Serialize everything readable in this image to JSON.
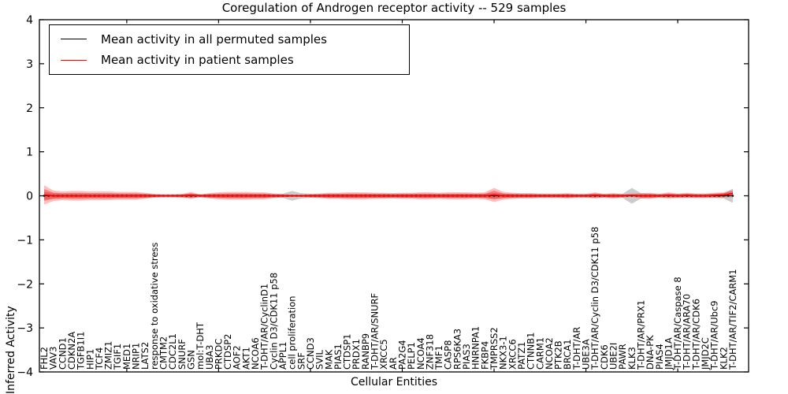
{
  "title": "Coregulation of Androgen receptor activity -- 529 samples",
  "axes": {
    "xlabel": "Cellular Entities",
    "ylabel": "Inferred Activity",
    "ylim": [
      -4,
      4
    ],
    "ytick_labels": [
      "4",
      "3",
      "2",
      "1",
      "0",
      "−1",
      "−2",
      "−3",
      "−4"
    ]
  },
  "legend": {
    "items": [
      {
        "label": "Mean activity in all permuted samples",
        "color": "#000000"
      },
      {
        "label": "Mean activity in patient samples",
        "color": "#ff0000"
      }
    ]
  },
  "chart_data": {
    "type": "line",
    "title": "Coregulation of Androgen receptor activity -- 529 samples",
    "xlabel": "Cellular Entities",
    "ylabel": "Inferred Activity",
    "ylim": [
      -4,
      4
    ],
    "yticks": [
      -4,
      -3,
      -2,
      -1,
      0,
      1,
      2,
      3,
      4
    ],
    "grid": false,
    "legend_position": "upper left",
    "categories": [
      "FHL2",
      "VAV3",
      "CCND1",
      "CDKN2A",
      "TGFB1I1",
      "HIP1",
      "TCF4",
      "ZMIZ1",
      "TGIF1",
      "MED1",
      "NRIP1",
      "LATS2",
      "response to oxidative stress",
      "CMTM2",
      "CDC2L1",
      "SNURF",
      "GSN",
      "mol:T-DHT",
      "UBA3",
      "PRKDC",
      "CTDSP2",
      "AOF2",
      "AKT1",
      "NCOA6",
      "T-DHT/AR/CyclinD1",
      "Cyclin D3/CDK11 p58",
      "APPL1",
      "cell proliferation",
      "SRF",
      "CCND3",
      "SVIL",
      "MAK",
      "PIAS1",
      "CTDSP1",
      "PRDX1",
      "RANBP9",
      "T-DHT/AR/SNURF",
      "XRCC5",
      "AR",
      "PA2G4",
      "PELP1",
      "NCOA4",
      "ZNF318",
      "TMF1",
      "CASP8",
      "RPS6KA3",
      "PIAS3",
      "HNRNPA1",
      "FKBP4",
      "TMPRSS2",
      "NKX3-1",
      "XRCC6",
      "PATZ1",
      "CTNNB1",
      "CARM1",
      "NCOA2",
      "PTK2B",
      "BRCA1",
      "T-DHT/AR",
      "UBE3A",
      "T-DHT/AR/Cyclin D3/CDK11 p58",
      "CDK6",
      "UBE2I",
      "PAWR",
      "KLK3",
      "T-DHT/AR/PRX1",
      "DNA-PK",
      "PIAS4",
      "JMJD1A",
      "T-DHT/AR/Caspase 8",
      "T-DHT/AR/ARA70",
      "T-DHT/AR/CDK6",
      "JMJD2C",
      "T-DHT/AR/Ubc9",
      "KLK2",
      "T-DHT/AR/TIF2/CARM1"
    ],
    "series": [
      {
        "name": "Mean activity in all permuted samples",
        "color": "#000000",
        "band_color": "#bbbbbb",
        "band_opacity": 0.75,
        "values": [
          0,
          0,
          0,
          0,
          0,
          0,
          0,
          0,
          0,
          0,
          0,
          0,
          0,
          0,
          0,
          0,
          0,
          0,
          0,
          0,
          0,
          0,
          0,
          0,
          0,
          0,
          0,
          0,
          0,
          0,
          0,
          0,
          0,
          0,
          0,
          0,
          0,
          0,
          0,
          0,
          0,
          0,
          0,
          0,
          0,
          0,
          0,
          0,
          0,
          0,
          0,
          0,
          0,
          0,
          0,
          0,
          0,
          0,
          0,
          0,
          0,
          0,
          0,
          0,
          0,
          0,
          0,
          0,
          0,
          0,
          0,
          0,
          0,
          0,
          0,
          0
        ],
        "band_halfwidth": [
          0.09,
          0.06,
          0.05,
          0.05,
          0.05,
          0.05,
          0.05,
          0.05,
          0.05,
          0.05,
          0.05,
          0.05,
          0.04,
          0.04,
          0.04,
          0.04,
          0.05,
          0.04,
          0.05,
          0.05,
          0.05,
          0.05,
          0.05,
          0.05,
          0.05,
          0.05,
          0.05,
          0.11,
          0.06,
          0.05,
          0.05,
          0.05,
          0.05,
          0.05,
          0.05,
          0.05,
          0.05,
          0.05,
          0.05,
          0.05,
          0.05,
          0.05,
          0.05,
          0.05,
          0.05,
          0.05,
          0.05,
          0.05,
          0.05,
          0.07,
          0.05,
          0.05,
          0.05,
          0.05,
          0.05,
          0.05,
          0.05,
          0.05,
          0.05,
          0.05,
          0.05,
          0.05,
          0.05,
          0.05,
          0.18,
          0.06,
          0.05,
          0.05,
          0.05,
          0.05,
          0.05,
          0.05,
          0.05,
          0.05,
          0.06,
          0.16
        ]
      },
      {
        "name": "Mean activity in patient samples",
        "color": "#ff0000",
        "band_color": "#ff0000",
        "band_opacity": 0.25,
        "band_inner_ratio": 0.6,
        "values": [
          0.02,
          0,
          0,
          0,
          0,
          0,
          0,
          0,
          0,
          0,
          0,
          0,
          0,
          0,
          0,
          0,
          0.01,
          0,
          0,
          0,
          0,
          0,
          0,
          0,
          0,
          0,
          0,
          0,
          0,
          0,
          0,
          0,
          0,
          0,
          0,
          0,
          0,
          0,
          0,
          0,
          0,
          0,
          0,
          0,
          0,
          0,
          0,
          0,
          0,
          0.02,
          0,
          0,
          0,
          0,
          0,
          0,
          0,
          0,
          0,
          0,
          0.01,
          0,
          0,
          0,
          0.01,
          0,
          0,
          0,
          0.01,
          0,
          0.01,
          0,
          0,
          0.01,
          0.02,
          0.05
        ],
        "band_halfwidth": [
          0.22,
          0.12,
          0.1,
          0.11,
          0.11,
          0.1,
          0.1,
          0.1,
          0.09,
          0.09,
          0.09,
          0.07,
          0.04,
          0.03,
          0.03,
          0.04,
          0.08,
          0.03,
          0.06,
          0.08,
          0.09,
          0.09,
          0.09,
          0.08,
          0.08,
          0.05,
          0.04,
          0.03,
          0.03,
          0.04,
          0.05,
          0.07,
          0.07,
          0.08,
          0.08,
          0.08,
          0.07,
          0.07,
          0.06,
          0.07,
          0.07,
          0.08,
          0.08,
          0.07,
          0.08,
          0.08,
          0.08,
          0.07,
          0.08,
          0.16,
          0.09,
          0.07,
          0.06,
          0.06,
          0.05,
          0.05,
          0.05,
          0.06,
          0.04,
          0.04,
          0.07,
          0.04,
          0.06,
          0.04,
          0.04,
          0.06,
          0.07,
          0.04,
          0.07,
          0.05,
          0.06,
          0.05,
          0.05,
          0.06,
          0.06,
          0.08
        ]
      }
    ]
  }
}
